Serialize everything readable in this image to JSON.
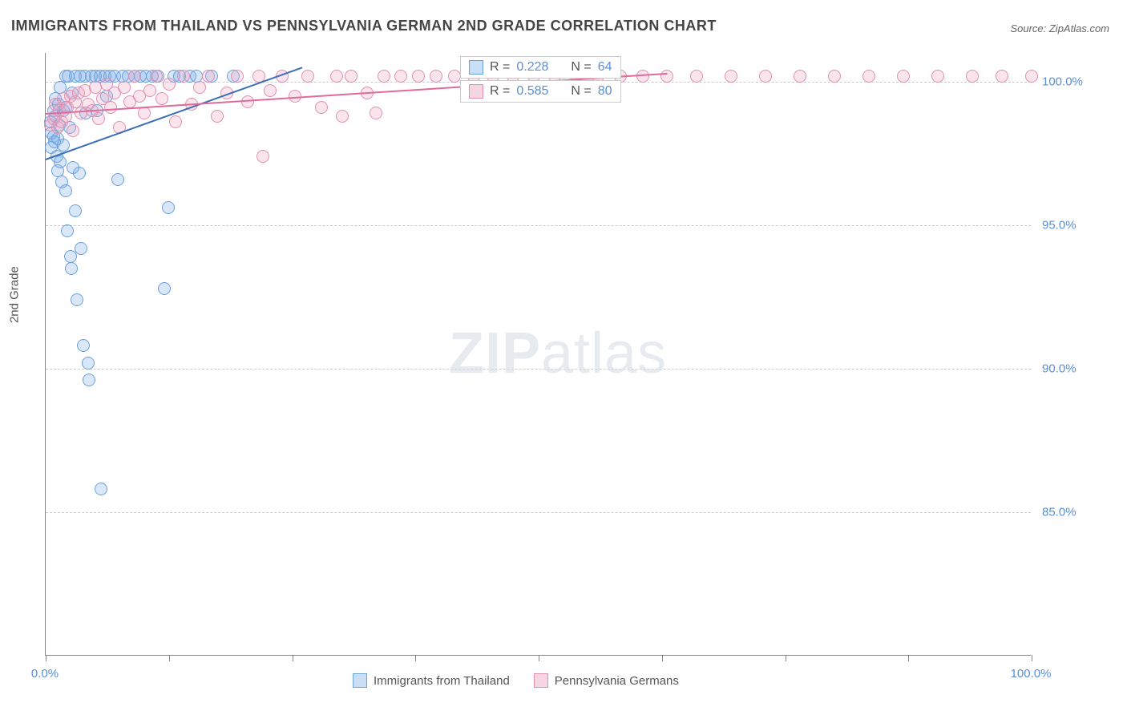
{
  "title": "IMMIGRANTS FROM THAILAND VS PENNSYLVANIA GERMAN 2ND GRADE CORRELATION CHART",
  "source": "Source: ZipAtlas.com",
  "ylabel": "2nd Grade",
  "watermark_a": "ZIP",
  "watermark_b": "atlas",
  "chart": {
    "type": "scatter",
    "xlim": [
      0,
      100
    ],
    "ylim": [
      80,
      101
    ],
    "background_color": "#ffffff",
    "grid_color": "#cccccc",
    "axis_color": "#888888",
    "yticks": [
      {
        "v": 85.0,
        "label": "85.0%"
      },
      {
        "v": 90.0,
        "label": "90.0%"
      },
      {
        "v": 95.0,
        "label": "95.0%"
      },
      {
        "v": 100.0,
        "label": "100.0%"
      }
    ],
    "xtick_positions": [
      0,
      12.5,
      25,
      37.5,
      50,
      62.5,
      75,
      87.5,
      100
    ],
    "xtick_labels": [
      {
        "v": 0,
        "label": "0.0%"
      },
      {
        "v": 100,
        "label": "100.0%"
      }
    ],
    "marker_radius": 8,
    "marker_stroke_width": 1.5,
    "series": [
      {
        "name": "Immigrants from Thailand",
        "legend_label": "Immigrants from Thailand",
        "fill": "rgba(120,170,230,0.28)",
        "stroke": "#6aa0de",
        "swatch_fill": "#c9dff5",
        "swatch_border": "#6aa0de",
        "R": "0.228",
        "N": "64",
        "trend": {
          "x1": 0,
          "y1": 97.3,
          "x2": 26,
          "y2": 100.5,
          "color": "#3b6fb5"
        },
        "points": [
          [
            0.5,
            98.6
          ],
          [
            0.6,
            98.2
          ],
          [
            0.6,
            97.7
          ],
          [
            0.8,
            99.0
          ],
          [
            0.8,
            98.1
          ],
          [
            0.9,
            97.9
          ],
          [
            1.0,
            99.4
          ],
          [
            1.0,
            98.8
          ],
          [
            1.1,
            97.4
          ],
          [
            1.2,
            96.9
          ],
          [
            1.2,
            98.0
          ],
          [
            1.3,
            99.2
          ],
          [
            1.4,
            98.5
          ],
          [
            1.5,
            99.8
          ],
          [
            1.5,
            97.2
          ],
          [
            1.6,
            96.5
          ],
          [
            1.8,
            99.0
          ],
          [
            1.8,
            97.8
          ],
          [
            2.0,
            100.2
          ],
          [
            2.0,
            99.1
          ],
          [
            2.0,
            96.2
          ],
          [
            2.2,
            94.8
          ],
          [
            2.3,
            100.2
          ],
          [
            2.4,
            98.4
          ],
          [
            2.5,
            93.9
          ],
          [
            2.6,
            93.5
          ],
          [
            2.7,
            99.6
          ],
          [
            2.8,
            97.0
          ],
          [
            3.0,
            100.2
          ],
          [
            3.0,
            95.5
          ],
          [
            3.2,
            92.4
          ],
          [
            3.4,
            96.8
          ],
          [
            3.5,
            100.2
          ],
          [
            3.6,
            94.2
          ],
          [
            3.8,
            90.8
          ],
          [
            4.0,
            100.2
          ],
          [
            4.1,
            98.9
          ],
          [
            4.3,
            90.2
          ],
          [
            4.4,
            89.6
          ],
          [
            4.6,
            100.2
          ],
          [
            5.0,
            100.2
          ],
          [
            5.2,
            99.0
          ],
          [
            5.5,
            100.2
          ],
          [
            5.6,
            85.8
          ],
          [
            6.0,
            100.2
          ],
          [
            6.2,
            99.5
          ],
          [
            6.5,
            100.2
          ],
          [
            7.0,
            100.2
          ],
          [
            7.3,
            96.6
          ],
          [
            7.8,
            100.2
          ],
          [
            8.4,
            100.2
          ],
          [
            9.0,
            100.2
          ],
          [
            9.6,
            100.2
          ],
          [
            10.2,
            100.2
          ],
          [
            10.8,
            100.2
          ],
          [
            11.4,
            100.2
          ],
          [
            12.0,
            92.8
          ],
          [
            12.4,
            95.6
          ],
          [
            13.0,
            100.2
          ],
          [
            13.6,
            100.2
          ],
          [
            14.6,
            100.2
          ],
          [
            15.3,
            100.2
          ],
          [
            16.8,
            100.2
          ],
          [
            19.0,
            100.2
          ]
        ]
      },
      {
        "name": "Pennsylvania Germans",
        "legend_label": "Pennsylvania Germans",
        "fill": "rgba(240,160,190,0.28)",
        "stroke": "#e08fb0",
        "swatch_fill": "#f6d5e2",
        "swatch_border": "#e08fb0",
        "R": "0.585",
        "N": "80",
        "trend": {
          "x1": 0,
          "y1": 98.9,
          "x2": 63,
          "y2": 100.3,
          "color": "#e06a9a"
        },
        "points": [
          [
            0.5,
            98.5
          ],
          [
            0.8,
            98.7
          ],
          [
            1.0,
            99.2
          ],
          [
            1.2,
            98.4
          ],
          [
            1.4,
            99.0
          ],
          [
            1.6,
            98.6
          ],
          [
            1.8,
            99.4
          ],
          [
            2.0,
            98.8
          ],
          [
            2.2,
            99.1
          ],
          [
            2.5,
            99.5
          ],
          [
            2.8,
            98.3
          ],
          [
            3.0,
            99.3
          ],
          [
            3.3,
            99.6
          ],
          [
            3.6,
            98.9
          ],
          [
            4.0,
            99.7
          ],
          [
            4.3,
            99.2
          ],
          [
            4.7,
            99.0
          ],
          [
            5.0,
            99.8
          ],
          [
            5.4,
            98.7
          ],
          [
            5.8,
            99.4
          ],
          [
            6.2,
            99.9
          ],
          [
            6.6,
            99.1
          ],
          [
            7.0,
            99.6
          ],
          [
            7.5,
            98.4
          ],
          [
            8.0,
            99.8
          ],
          [
            8.5,
            99.3
          ],
          [
            9.0,
            100.2
          ],
          [
            9.5,
            99.5
          ],
          [
            10.0,
            98.9
          ],
          [
            10.6,
            99.7
          ],
          [
            11.2,
            100.2
          ],
          [
            11.8,
            99.4
          ],
          [
            12.5,
            99.9
          ],
          [
            13.2,
            98.6
          ],
          [
            14.0,
            100.2
          ],
          [
            14.8,
            99.2
          ],
          [
            15.6,
            99.8
          ],
          [
            16.5,
            100.2
          ],
          [
            17.4,
            98.8
          ],
          [
            18.4,
            99.6
          ],
          [
            19.4,
            100.2
          ],
          [
            20.5,
            99.3
          ],
          [
            21.6,
            100.2
          ],
          [
            22.0,
            97.4
          ],
          [
            22.8,
            99.7
          ],
          [
            24.0,
            100.2
          ],
          [
            25.3,
            99.5
          ],
          [
            26.6,
            100.2
          ],
          [
            28.0,
            99.1
          ],
          [
            29.5,
            100.2
          ],
          [
            30.1,
            98.8
          ],
          [
            31.0,
            100.2
          ],
          [
            32.6,
            99.6
          ],
          [
            33.5,
            98.9
          ],
          [
            34.3,
            100.2
          ],
          [
            36.0,
            100.2
          ],
          [
            37.8,
            100.2
          ],
          [
            39.6,
            100.2
          ],
          [
            41.5,
            100.2
          ],
          [
            43.4,
            100.2
          ],
          [
            45.4,
            100.2
          ],
          [
            47.4,
            100.2
          ],
          [
            49.5,
            100.2
          ],
          [
            51.6,
            100.2
          ],
          [
            53.8,
            100.2
          ],
          [
            56.0,
            100.2
          ],
          [
            58.3,
            100.2
          ],
          [
            60.6,
            100.2
          ],
          [
            63.0,
            100.2
          ],
          [
            66.0,
            100.2
          ],
          [
            69.5,
            100.2
          ],
          [
            73.0,
            100.2
          ],
          [
            76.5,
            100.2
          ],
          [
            80.0,
            100.2
          ],
          [
            83.5,
            100.2
          ],
          [
            87.0,
            100.2
          ],
          [
            90.5,
            100.2
          ],
          [
            94.0,
            100.2
          ],
          [
            97.0,
            100.2
          ],
          [
            100.0,
            100.2
          ]
        ]
      }
    ]
  },
  "stats_label_R": "R = ",
  "stats_label_N": "N = "
}
